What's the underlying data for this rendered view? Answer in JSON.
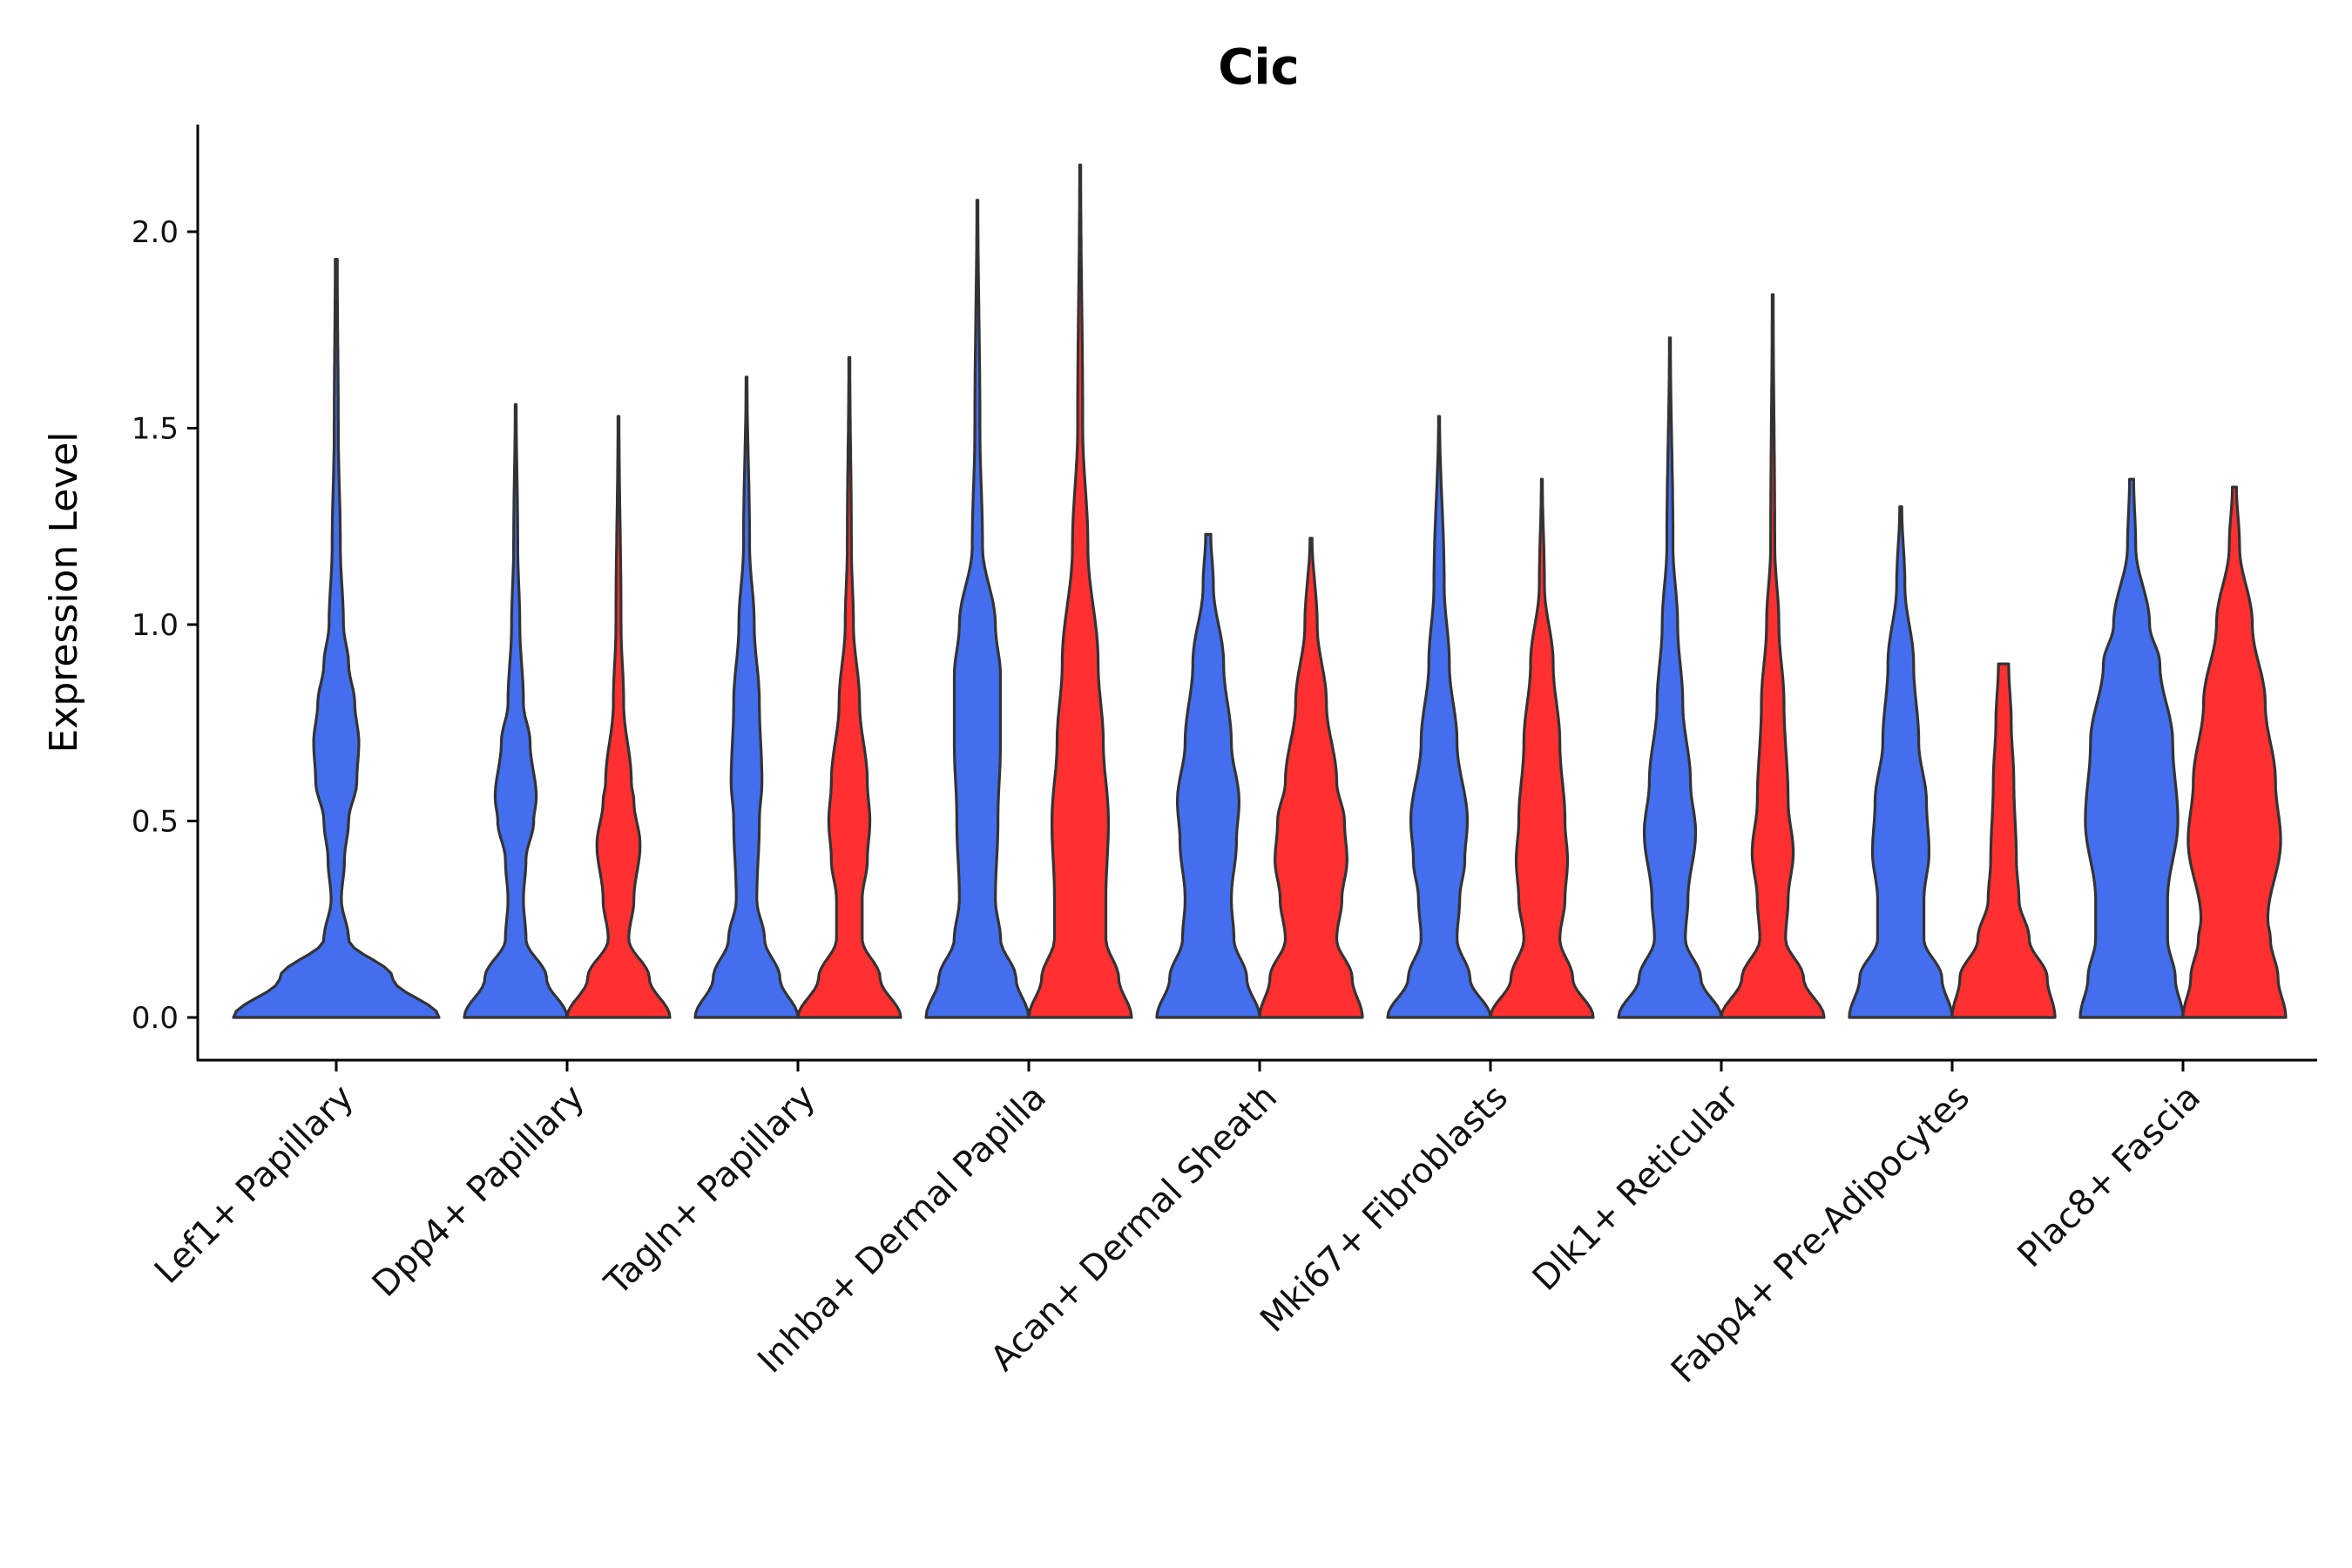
{
  "chart_data": {
    "type": "violin",
    "title": "Cic",
    "xlabel": "",
    "ylabel": "Expression Level",
    "ylim": [
      -0.11,
      2.28
    ],
    "yticks": [
      0.0,
      0.5,
      1.0,
      1.5,
      2.0
    ],
    "ytick_labels": [
      "0.0",
      "0.5",
      "1.0",
      "1.5",
      "2.0"
    ],
    "grid": false,
    "legend": "none",
    "colors": {
      "blue": "#436EEE",
      "red": "#FF3030",
      "outline": "#333333"
    },
    "categories": [
      "Lef1+ Papillary",
      "Dpp4+ Papillary",
      "Tagln+ Papillary",
      "Inhba+ Dermal Papilla",
      "Acan+ Dermal Sheath",
      "Mki67+ Fibroblasts",
      "Dlk1+ Reticular",
      "Fabp4+ Pre-Adipocytes",
      "Plac8+ Fascia"
    ],
    "violins": [
      {
        "category": 0,
        "group": "blue",
        "split": false,
        "max": 1.93,
        "density": [
          [
            0,
            1
          ],
          [
            0.1,
            0.55
          ],
          [
            0.2,
            0.12
          ],
          [
            0.3,
            0.05
          ],
          [
            0.4,
            0.08
          ],
          [
            0.5,
            0.12
          ],
          [
            0.6,
            0.2
          ],
          [
            0.7,
            0.22
          ],
          [
            0.8,
            0.18
          ],
          [
            0.9,
            0.12
          ],
          [
            1.0,
            0.07
          ],
          [
            1.2,
            0.04
          ],
          [
            1.5,
            0.02
          ],
          [
            1.93,
            0.01
          ]
        ]
      },
      {
        "category": 1,
        "group": "blue",
        "split": true,
        "max": 1.56,
        "density": [
          [
            0,
            1
          ],
          [
            0.1,
            0.6
          ],
          [
            0.2,
            0.2
          ],
          [
            0.3,
            0.15
          ],
          [
            0.4,
            0.2
          ],
          [
            0.5,
            0.35
          ],
          [
            0.56,
            0.4
          ],
          [
            0.7,
            0.28
          ],
          [
            0.8,
            0.15
          ],
          [
            1.0,
            0.08
          ],
          [
            1.2,
            0.04
          ],
          [
            1.56,
            0.01
          ]
        ]
      },
      {
        "category": 1,
        "group": "red",
        "split": true,
        "max": 1.53,
        "density": [
          [
            0,
            1
          ],
          [
            0.1,
            0.6
          ],
          [
            0.2,
            0.2
          ],
          [
            0.3,
            0.3
          ],
          [
            0.44,
            0.42
          ],
          [
            0.55,
            0.3
          ],
          [
            0.6,
            0.25
          ],
          [
            0.8,
            0.1
          ],
          [
            1.0,
            0.05
          ],
          [
            1.53,
            0.01
          ]
        ]
      },
      {
        "category": 2,
        "group": "blue",
        "split": true,
        "max": 1.63,
        "density": [
          [
            0,
            1
          ],
          [
            0.1,
            0.65
          ],
          [
            0.2,
            0.35
          ],
          [
            0.3,
            0.2
          ],
          [
            0.5,
            0.25
          ],
          [
            0.6,
            0.3
          ],
          [
            0.8,
            0.25
          ],
          [
            1.0,
            0.15
          ],
          [
            1.2,
            0.06
          ],
          [
            1.63,
            0.01
          ]
        ]
      },
      {
        "category": 2,
        "group": "red",
        "split": true,
        "max": 1.68,
        "density": [
          [
            0,
            1
          ],
          [
            0.1,
            0.6
          ],
          [
            0.2,
            0.25
          ],
          [
            0.3,
            0.25
          ],
          [
            0.4,
            0.35
          ],
          [
            0.5,
            0.4
          ],
          [
            0.6,
            0.35
          ],
          [
            0.8,
            0.2
          ],
          [
            1.0,
            0.08
          ],
          [
            1.2,
            0.04
          ],
          [
            1.68,
            0.01
          ]
        ]
      },
      {
        "category": 3,
        "group": "blue",
        "split": true,
        "max": 2.08,
        "density": [
          [
            0,
            1
          ],
          [
            0.1,
            0.75
          ],
          [
            0.2,
            0.45
          ],
          [
            0.3,
            0.35
          ],
          [
            0.5,
            0.4
          ],
          [
            0.7,
            0.45
          ],
          [
            0.87,
            0.45
          ],
          [
            1.0,
            0.35
          ],
          [
            1.2,
            0.1
          ],
          [
            1.5,
            0.05
          ],
          [
            2.08,
            0.01
          ]
        ]
      },
      {
        "category": 3,
        "group": "red",
        "split": true,
        "max": 2.17,
        "density": [
          [
            0,
            1
          ],
          [
            0.1,
            0.75
          ],
          [
            0.2,
            0.5
          ],
          [
            0.3,
            0.5
          ],
          [
            0.5,
            0.55
          ],
          [
            0.7,
            0.45
          ],
          [
            0.9,
            0.35
          ],
          [
            1.2,
            0.15
          ],
          [
            1.5,
            0.05
          ],
          [
            2.17,
            0.01
          ]
        ]
      },
      {
        "category": 4,
        "group": "blue",
        "split": true,
        "max": 1.23,
        "density": [
          [
            0,
            1
          ],
          [
            0.1,
            0.75
          ],
          [
            0.2,
            0.5
          ],
          [
            0.3,
            0.45
          ],
          [
            0.45,
            0.55
          ],
          [
            0.55,
            0.6
          ],
          [
            0.7,
            0.45
          ],
          [
            0.9,
            0.3
          ],
          [
            1.1,
            0.1
          ],
          [
            1.23,
            0.05
          ]
        ]
      },
      {
        "category": 4,
        "group": "red",
        "split": true,
        "max": 1.22,
        "density": [
          [
            0,
            1
          ],
          [
            0.1,
            0.8
          ],
          [
            0.2,
            0.5
          ],
          [
            0.3,
            0.6
          ],
          [
            0.4,
            0.7
          ],
          [
            0.5,
            0.65
          ],
          [
            0.6,
            0.5
          ],
          [
            0.8,
            0.3
          ],
          [
            1.0,
            0.12
          ],
          [
            1.22,
            0.02
          ]
        ]
      },
      {
        "category": 5,
        "group": "blue",
        "split": true,
        "max": 1.53,
        "density": [
          [
            0,
            1
          ],
          [
            0.1,
            0.6
          ],
          [
            0.2,
            0.35
          ],
          [
            0.3,
            0.4
          ],
          [
            0.4,
            0.5
          ],
          [
            0.5,
            0.55
          ],
          [
            0.7,
            0.35
          ],
          [
            0.9,
            0.2
          ],
          [
            1.1,
            0.1
          ],
          [
            1.53,
            0.01
          ]
        ]
      },
      {
        "category": 5,
        "group": "red",
        "split": true,
        "max": 1.37,
        "density": [
          [
            0,
            1
          ],
          [
            0.1,
            0.6
          ],
          [
            0.2,
            0.35
          ],
          [
            0.3,
            0.45
          ],
          [
            0.4,
            0.5
          ],
          [
            0.5,
            0.45
          ],
          [
            0.7,
            0.35
          ],
          [
            0.9,
            0.22
          ],
          [
            1.1,
            0.05
          ],
          [
            1.37,
            0.01
          ]
        ]
      },
      {
        "category": 6,
        "group": "blue",
        "split": true,
        "max": 1.73,
        "density": [
          [
            0,
            1
          ],
          [
            0.1,
            0.6
          ],
          [
            0.2,
            0.3
          ],
          [
            0.3,
            0.35
          ],
          [
            0.47,
            0.5
          ],
          [
            0.6,
            0.4
          ],
          [
            0.8,
            0.25
          ],
          [
            1.0,
            0.15
          ],
          [
            1.2,
            0.06
          ],
          [
            1.73,
            0.01
          ]
        ]
      },
      {
        "category": 6,
        "group": "red",
        "split": true,
        "max": 1.84,
        "density": [
          [
            0,
            1
          ],
          [
            0.1,
            0.6
          ],
          [
            0.2,
            0.25
          ],
          [
            0.3,
            0.3
          ],
          [
            0.42,
            0.4
          ],
          [
            0.55,
            0.3
          ],
          [
            0.8,
            0.22
          ],
          [
            1.0,
            0.12
          ],
          [
            1.2,
            0.04
          ],
          [
            1.84,
            0.01
          ]
        ]
      },
      {
        "category": 7,
        "group": "blue",
        "split": true,
        "max": 1.3,
        "density": [
          [
            0,
            1
          ],
          [
            0.1,
            0.8
          ],
          [
            0.2,
            0.45
          ],
          [
            0.3,
            0.45
          ],
          [
            0.42,
            0.55
          ],
          [
            0.55,
            0.5
          ],
          [
            0.7,
            0.35
          ],
          [
            0.9,
            0.25
          ],
          [
            1.1,
            0.08
          ],
          [
            1.3,
            0.02
          ]
        ]
      },
      {
        "category": 7,
        "group": "red",
        "split": true,
        "max": 0.9,
        "density": [
          [
            0,
            1
          ],
          [
            0.1,
            0.85
          ],
          [
            0.2,
            0.5
          ],
          [
            0.3,
            0.3
          ],
          [
            0.4,
            0.25
          ],
          [
            0.6,
            0.2
          ],
          [
            0.75,
            0.15
          ],
          [
            0.9,
            0.1
          ]
        ]
      },
      {
        "category": 8,
        "group": "blue",
        "split": true,
        "max": 1.37,
        "density": [
          [
            0,
            1
          ],
          [
            0.1,
            0.85
          ],
          [
            0.2,
            0.7
          ],
          [
            0.3,
            0.7
          ],
          [
            0.5,
            0.9
          ],
          [
            0.7,
            0.8
          ],
          [
            0.9,
            0.55
          ],
          [
            1.0,
            0.35
          ],
          [
            1.2,
            0.08
          ],
          [
            1.37,
            0.04
          ]
        ]
      },
      {
        "category": 8,
        "group": "red",
        "split": true,
        "max": 1.35,
        "density": [
          [
            0,
            1
          ],
          [
            0.1,
            0.85
          ],
          [
            0.2,
            0.7
          ],
          [
            0.25,
            0.65
          ],
          [
            0.45,
            0.9
          ],
          [
            0.6,
            0.8
          ],
          [
            0.8,
            0.6
          ],
          [
            1.0,
            0.35
          ],
          [
            1.2,
            0.1
          ],
          [
            1.35,
            0.04
          ]
        ]
      }
    ]
  }
}
